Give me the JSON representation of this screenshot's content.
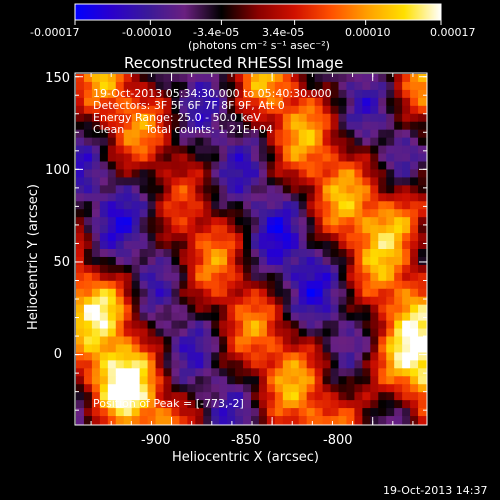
{
  "colorbar": {
    "ticks": [
      "-0.00017",
      "-0.00010",
      "-3.4e-05",
      "3.4e-05",
      "0.00010",
      "0.00017"
    ],
    "tick_values": [
      -0.00017,
      -0.0001,
      -3.4e-05,
      3.4e-05,
      0.0001,
      0.00017
    ],
    "range": [
      -0.00017,
      0.00017
    ],
    "units": "(photons cm⁻² s⁻¹ asec⁻²)",
    "colormap_stops": [
      "#0000ff",
      "#2a00cc",
      "#3a1a99",
      "#6a2080",
      "#000000",
      "#8a0000",
      "#d01000",
      "#ff5000",
      "#ffa000",
      "#ffe000",
      "#ffffff"
    ]
  },
  "plot": {
    "title": "Reconstructed RHESSI Image",
    "annotations": [
      "19-Oct-2013 05:34:30.000 to 05:40:30.000",
      "Detectors: 3F 5F 6F 7F 8F 9F, Att 0",
      "Energy Range: 25.0 - 50.0 keV",
      "Clean      Total counts: 1.21E+04"
    ],
    "peak_label": "Position of Peak = [-773,-2]",
    "xlabel": "Heliocentric X (arcsec)",
    "ylabel": "Heliocentric Y (arcsec)",
    "xticks": [
      "-900",
      "-850",
      "-800"
    ],
    "yticks": [
      "0",
      "50",
      "100",
      "150"
    ],
    "xlim": [
      -948,
      -773
    ],
    "ylim": [
      -38,
      152
    ]
  },
  "timestamp": "19-Oct-2013 14:37"
}
